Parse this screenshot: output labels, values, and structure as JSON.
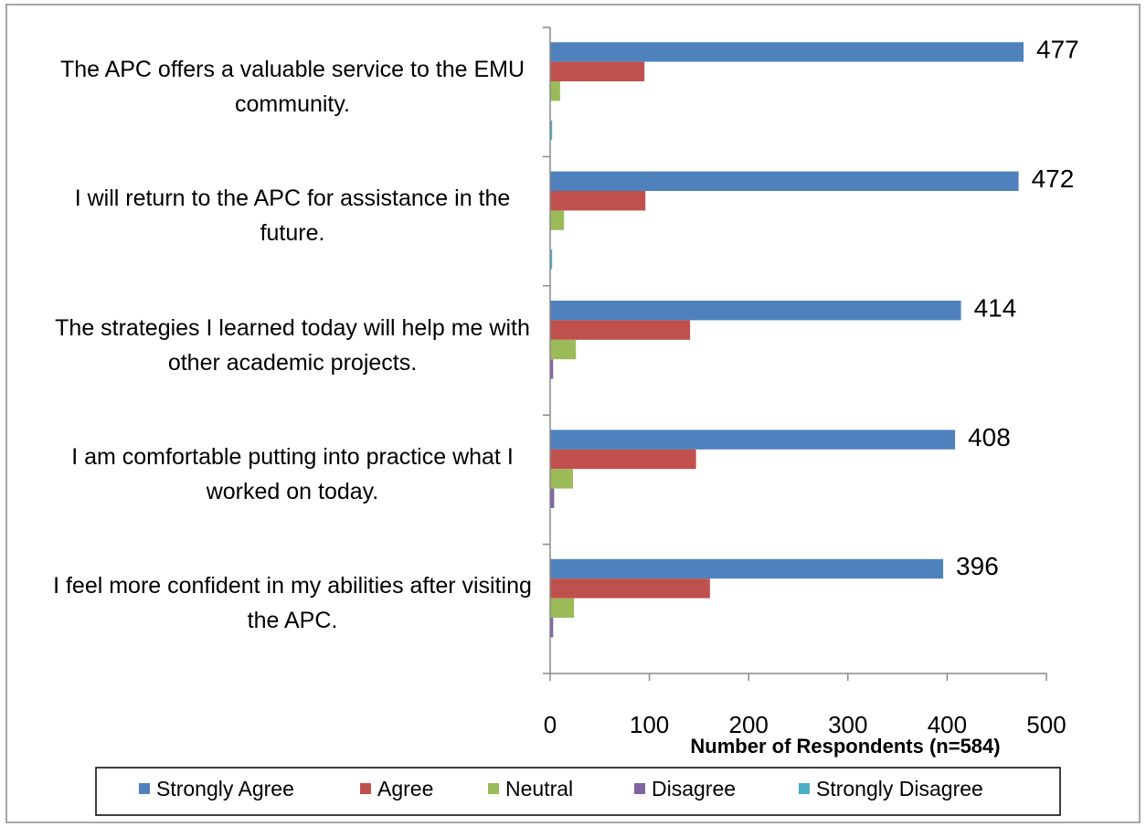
{
  "chart_data": {
    "type": "hbar",
    "categories": [
      "The APC offers a valuable service to the EMU community.",
      "I will return to the APC for assistance in the future.",
      "The strategies I learned today will help me with other academic projects.",
      "I am comfortable putting into practice what I worked on today.",
      "I feel more confident in my abilities after visiting the APC."
    ],
    "series": [
      {
        "name": "Strongly Agree",
        "color": "#4f81bd",
        "values": [
          477,
          472,
          414,
          408,
          396
        ],
        "show_labels": true
      },
      {
        "name": "Agree",
        "color": "#c0504d",
        "values": [
          95,
          96,
          141,
          147,
          161
        ]
      },
      {
        "name": "Neutral",
        "color": "#9bbb59",
        "values": [
          10,
          14,
          26,
          23,
          24
        ]
      },
      {
        "name": "Disagree",
        "color": "#8064a2",
        "values": [
          0,
          0,
          3,
          4,
          3
        ]
      },
      {
        "name": "Strongly Disagree",
        "color": "#4bacc6",
        "values": [
          2,
          2,
          0,
          0,
          0
        ]
      }
    ],
    "xlabel": "Number of  Respondents (n=584)",
    "xlim": [
      0,
      500
    ],
    "xticks": [
      0,
      100,
      200,
      300,
      400,
      500
    ],
    "legend": "bottom"
  }
}
